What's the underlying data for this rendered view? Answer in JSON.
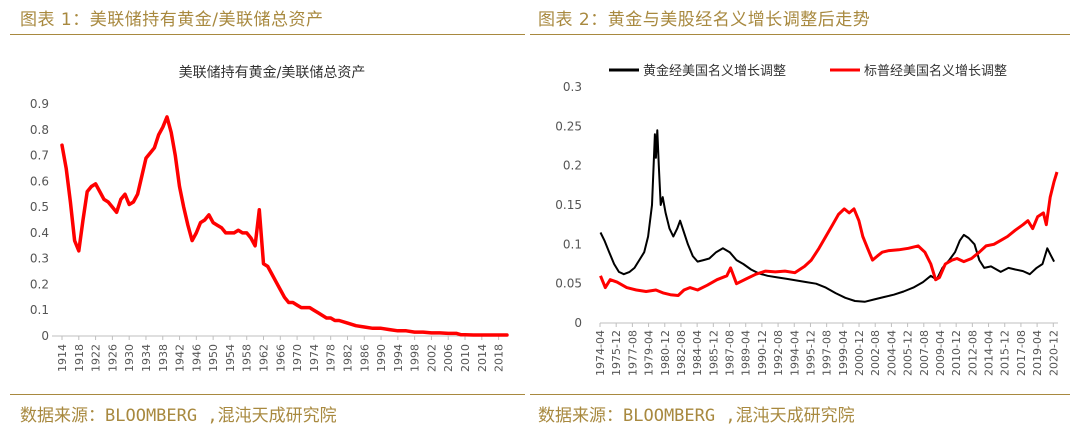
{
  "left": {
    "figure_title": "图表 1：美联储持有黄金/美联储总资产",
    "source": "数据来源：BLOOMBERG ,混沌天成研究院"
  },
  "right": {
    "figure_title": "图表 2：黄金与美股经名义增长调整后走势",
    "source": "数据来源：BLOOMBERG ,混沌天成研究院"
  },
  "colors": {
    "accent": "#a8893f",
    "red": "#ff0000",
    "black": "#000000",
    "axis": "#bfbfbf"
  },
  "chart_data": [
    {
      "type": "line",
      "title": "美联储持有黄金/美联储总资产",
      "ylim": [
        0,
        0.9
      ],
      "y_ticks": [
        "0",
        "0.1",
        "0.2",
        "0.3",
        "0.4",
        "0.5",
        "0.6",
        "0.7",
        "0.8",
        "0.9"
      ],
      "x_ticks": [
        "1914",
        "1918",
        "1922",
        "1926",
        "1930",
        "1934",
        "1938",
        "1942",
        "1946",
        "1950",
        "1954",
        "1958",
        "1962",
        "1966",
        "1970",
        "1974",
        "1978",
        "1982",
        "1986",
        "1990",
        "1994",
        "1998",
        "2002",
        "2006",
        "2010",
        "2014",
        "2018"
      ],
      "grid": false,
      "series": [
        {
          "color": "#ff0000",
          "x": [
            1914,
            1915,
            1916,
            1917,
            1918,
            1919,
            1920,
            1921,
            1922,
            1923,
            1924,
            1925,
            1926,
            1927,
            1928,
            1929,
            1930,
            1931,
            1932,
            1933,
            1934,
            1935,
            1936,
            1937,
            1938,
            1939,
            1940,
            1941,
            1942,
            1943,
            1944,
            1945,
            1946,
            1947,
            1948,
            1949,
            1950,
            1951,
            1952,
            1953,
            1954,
            1955,
            1956,
            1957,
            1958,
            1959,
            1960,
            1961,
            1962,
            1963,
            1964,
            1965,
            1966,
            1967,
            1968,
            1969,
            1970,
            1971,
            1972,
            1973,
            1974,
            1975,
            1976,
            1977,
            1978,
            1979,
            1980,
            1982,
            1984,
            1986,
            1988,
            1990,
            1992,
            1994,
            1996,
            1998,
            2000,
            2002,
            2004,
            2006,
            2008,
            2009,
            2010,
            2012,
            2014,
            2016,
            2018,
            2020
          ],
          "values": [
            0.74,
            0.65,
            0.52,
            0.37,
            0.33,
            0.45,
            0.56,
            0.58,
            0.59,
            0.56,
            0.53,
            0.52,
            0.5,
            0.48,
            0.53,
            0.55,
            0.51,
            0.52,
            0.55,
            0.62,
            0.69,
            0.71,
            0.73,
            0.78,
            0.81,
            0.85,
            0.79,
            0.7,
            0.58,
            0.5,
            0.43,
            0.37,
            0.4,
            0.44,
            0.45,
            0.47,
            0.44,
            0.43,
            0.42,
            0.4,
            0.4,
            0.4,
            0.41,
            0.4,
            0.4,
            0.38,
            0.35,
            0.49,
            0.28,
            0.27,
            0.24,
            0.21,
            0.18,
            0.15,
            0.13,
            0.13,
            0.12,
            0.11,
            0.11,
            0.11,
            0.1,
            0.09,
            0.08,
            0.07,
            0.07,
            0.06,
            0.06,
            0.05,
            0.04,
            0.035,
            0.03,
            0.03,
            0.025,
            0.02,
            0.02,
            0.015,
            0.015,
            0.012,
            0.012,
            0.01,
            0.01,
            0.005,
            0.005,
            0.004,
            0.004,
            0.004,
            0.004,
            0.004
          ]
        }
      ]
    },
    {
      "type": "line",
      "title": "",
      "ylim": [
        0,
        0.3
      ],
      "y_ticks": [
        "0",
        "0.05",
        "0.1",
        "0.15",
        "0.2",
        "0.25",
        "0.3"
      ],
      "x_ticks": [
        "1974-04",
        "1975-12",
        "1977-08",
        "1979-04",
        "1980-12",
        "1982-08",
        "1984-04",
        "1985-12",
        "1987-08",
        "1989-04",
        "1990-12",
        "1992-08",
        "1994-04",
        "1995-12",
        "1997-08",
        "1999-04",
        "2000-12",
        "2002-08",
        "2004-04",
        "2005-12",
        "2007-08",
        "2009-04",
        "2010-12",
        "2012-08",
        "2014-04",
        "2015-12",
        "2017-08",
        "2019-04",
        "2020-12"
      ],
      "legend": "top",
      "grid": false,
      "series": [
        {
          "name": "黄金经美国名义增长调整",
          "color": "#000000",
          "x": [
            1974.3,
            1974.7,
            1975.2,
            1975.7,
            1976.2,
            1976.7,
            1977.3,
            1977.8,
            1978.3,
            1978.8,
            1979.2,
            1979.6,
            1979.9,
            1980.0,
            1980.15,
            1980.3,
            1980.5,
            1980.7,
            1981.0,
            1981.4,
            1981.8,
            1982.2,
            1982.5,
            1982.9,
            1983.3,
            1983.8,
            1984.3,
            1984.9,
            1985.5,
            1986.2,
            1986.9,
            1987.6,
            1988.3,
            1989.0,
            1989.8,
            1990.6,
            1991.5,
            1992.5,
            1993.5,
            1994.5,
            1995.5,
            1996.5,
            1997.5,
            1998.5,
            1999.5,
            2000.5,
            2001.5,
            2002.5,
            2003.5,
            2004.5,
            2005.5,
            2006.5,
            2007.5,
            2008.3,
            2008.9,
            2009.5,
            2010.2,
            2010.8,
            2011.3,
            2011.7,
            2012.2,
            2012.8,
            2013.3,
            2013.8,
            2014.5,
            2015.5,
            2016.3,
            2017.0,
            2017.8,
            2018.5,
            2019.2,
            2019.8,
            2020.3,
            2020.7,
            2021.0
          ],
          "values": [
            0.115,
            0.105,
            0.09,
            0.075,
            0.065,
            0.062,
            0.065,
            0.07,
            0.08,
            0.09,
            0.11,
            0.15,
            0.24,
            0.21,
            0.245,
            0.2,
            0.15,
            0.16,
            0.14,
            0.12,
            0.11,
            0.12,
            0.13,
            0.115,
            0.1,
            0.085,
            0.078,
            0.08,
            0.082,
            0.09,
            0.095,
            0.09,
            0.08,
            0.075,
            0.068,
            0.063,
            0.06,
            0.058,
            0.056,
            0.054,
            0.052,
            0.05,
            0.045,
            0.038,
            0.032,
            0.028,
            0.027,
            0.03,
            0.033,
            0.036,
            0.04,
            0.045,
            0.052,
            0.06,
            0.055,
            0.07,
            0.08,
            0.09,
            0.105,
            0.112,
            0.108,
            0.1,
            0.08,
            0.07,
            0.072,
            0.065,
            0.07,
            0.068,
            0.066,
            0.062,
            0.07,
            0.075,
            0.095,
            0.085,
            0.078
          ]
        },
        {
          "name": "标普经美国名义增长调整",
          "color": "#ff0000",
          "x": [
            1974.3,
            1974.8,
            1975.3,
            1976.0,
            1977.0,
            1978.0,
            1979.0,
            1980.0,
            1980.8,
            1981.5,
            1982.3,
            1982.9,
            1983.5,
            1984.3,
            1985.3,
            1986.3,
            1987.3,
            1987.7,
            1988.3,
            1989.3,
            1990.3,
            1991.3,
            1992.3,
            1993.3,
            1994.3,
            1995.3,
            1996.0,
            1996.8,
            1997.5,
            1998.2,
            1998.8,
            1999.4,
            1999.9,
            2000.4,
            2000.9,
            2001.3,
            2001.8,
            2002.3,
            2002.8,
            2003.3,
            2004.0,
            2005.0,
            2006.0,
            2007.0,
            2007.7,
            2008.3,
            2008.8,
            2009.2,
            2009.8,
            2010.5,
            2011.0,
            2011.7,
            2012.5,
            2013.3,
            2014.0,
            2014.8,
            2015.5,
            2016.2,
            2017.0,
            2017.8,
            2018.3,
            2018.8,
            2019.3,
            2019.9,
            2020.2,
            2020.6,
            2021.0,
            2021.3
          ],
          "values": [
            0.06,
            0.045,
            0.055,
            0.052,
            0.045,
            0.042,
            0.04,
            0.042,
            0.038,
            0.036,
            0.035,
            0.042,
            0.045,
            0.042,
            0.048,
            0.055,
            0.06,
            0.07,
            0.05,
            0.056,
            0.062,
            0.066,
            0.065,
            0.066,
            0.064,
            0.072,
            0.08,
            0.095,
            0.11,
            0.125,
            0.138,
            0.145,
            0.14,
            0.145,
            0.13,
            0.11,
            0.095,
            0.08,
            0.085,
            0.09,
            0.092,
            0.093,
            0.095,
            0.098,
            0.09,
            0.075,
            0.055,
            0.058,
            0.075,
            0.08,
            0.082,
            0.078,
            0.082,
            0.09,
            0.098,
            0.1,
            0.105,
            0.11,
            0.118,
            0.125,
            0.13,
            0.12,
            0.135,
            0.14,
            0.125,
            0.16,
            0.18,
            0.192
          ]
        }
      ]
    }
  ]
}
